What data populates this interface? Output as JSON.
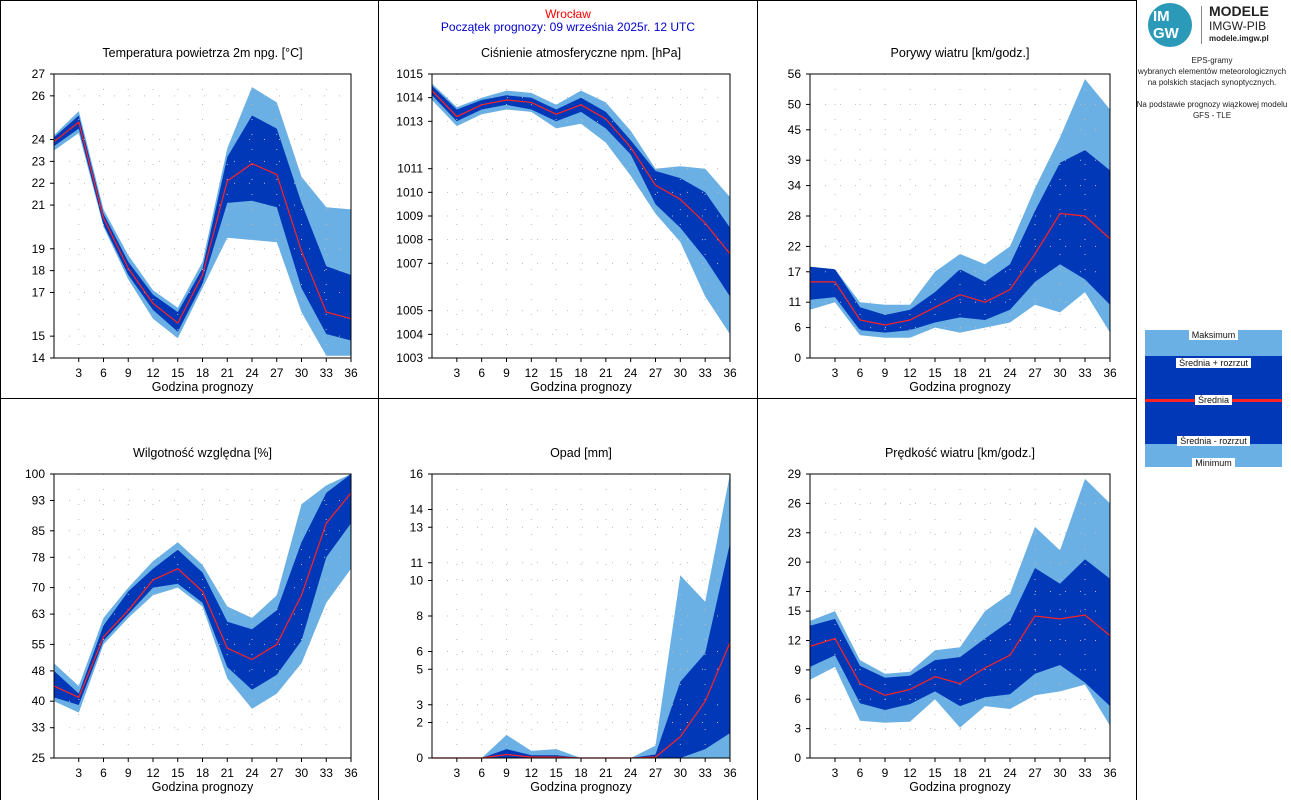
{
  "header": {
    "station": "Wrocław",
    "forecast_start": "Początek prognozy: 09 września 2025r. 12 UTC"
  },
  "logo": {
    "mark_top": "IM",
    "mark_bottom": "GW",
    "title": "MODELE",
    "subtitle": "IMGW-PIB",
    "url": "modele.imgw.pl"
  },
  "description": {
    "line1": "EPS-gramy",
    "line2": "wybranych elementów meteorologicznych",
    "line3": "na polskich stacjach  synoptycznych.",
    "line4": "Na podstawie prognozy wiązkowej modelu",
    "line5": "GFS - TLE"
  },
  "legend": {
    "max": "Maksimum",
    "mean_plus": "Średnia + rozrzut",
    "mean": "Średnia",
    "mean_minus": "Średnia - rozrzut",
    "min": "Minimum"
  },
  "colors": {
    "outer_band": "#6ab0e4",
    "inner_band": "#0038b8",
    "mean_line": "#ff2222",
    "frame": "#000000",
    "grid_dots": "#bbbbbb",
    "station_title": "#ff0000",
    "start_title": "#0000cc"
  },
  "chart_data": [
    {
      "type": "area",
      "title": "Temperatura powietrza 2m npg. [°C]",
      "xlabel": "Godzina prognozy",
      "x": [
        0,
        3,
        6,
        9,
        12,
        15,
        18,
        21,
        24,
        27,
        30,
        33,
        36
      ],
      "xticks": [
        3,
        6,
        9,
        12,
        15,
        18,
        21,
        24,
        27,
        30,
        33,
        36
      ],
      "ylim": [
        14,
        27
      ],
      "yticks": [
        14,
        15,
        17,
        18,
        19,
        21,
        22,
        23,
        24,
        26,
        27
      ],
      "max": [
        24.2,
        25.3,
        20.8,
        18.7,
        17.1,
        16.3,
        18.4,
        23.6,
        26.4,
        25.7,
        22.3,
        20.9,
        20.8
      ],
      "mean_plus": [
        24.1,
        25.1,
        20.6,
        18.4,
        16.9,
        16.1,
        18.1,
        23.2,
        25.1,
        24.5,
        21.1,
        18.2,
        17.8
      ],
      "mean": [
        23.9,
        24.8,
        20.4,
        18.1,
        16.5,
        15.6,
        17.8,
        22.1,
        22.9,
        22.4,
        18.9,
        16.1,
        15.8
      ],
      "mean_minus": [
        23.7,
        24.5,
        20.1,
        17.8,
        16.2,
        15.2,
        17.4,
        21.1,
        21.2,
        20.9,
        17.2,
        15.1,
        14.8
      ],
      "min": [
        23.5,
        24.3,
        20.0,
        17.6,
        15.8,
        14.9,
        17.2,
        19.5,
        19.4,
        19.3,
        16.1,
        14.1,
        14.1
      ]
    },
    {
      "type": "area",
      "title": "Ciśnienie atmosferyczne npm. [hPa]",
      "xlabel": "Godzina prognozy",
      "x": [
        0,
        3,
        6,
        9,
        12,
        15,
        18,
        21,
        24,
        27,
        30,
        33,
        36
      ],
      "xticks": [
        3,
        6,
        9,
        12,
        15,
        18,
        21,
        24,
        27,
        30,
        33,
        36
      ],
      "ylim": [
        1003,
        1015
      ],
      "yticks": [
        1003,
        1004,
        1005,
        1007,
        1008,
        1009,
        1010,
        1011,
        1013,
        1014,
        1015
      ],
      "max": [
        1014.6,
        1013.6,
        1014.0,
        1014.3,
        1014.2,
        1013.7,
        1014.3,
        1013.8,
        1012.6,
        1011.0,
        1011.1,
        1011.0,
        1009.8
      ],
      "mean_plus": [
        1014.5,
        1013.5,
        1013.9,
        1014.1,
        1014.0,
        1013.5,
        1014.0,
        1013.4,
        1012.2,
        1010.9,
        1010.6,
        1010.0,
        1008.5
      ],
      "mean": [
        1014.3,
        1013.2,
        1013.7,
        1013.9,
        1013.8,
        1013.3,
        1013.7,
        1013.1,
        1011.9,
        1010.3,
        1009.7,
        1008.7,
        1007.4
      ],
      "mean_minus": [
        1014.1,
        1013.0,
        1013.5,
        1013.7,
        1013.5,
        1013.0,
        1013.4,
        1012.7,
        1011.6,
        1009.5,
        1008.5,
        1007.2,
        1005.6
      ],
      "min": [
        1013.9,
        1012.8,
        1013.3,
        1013.5,
        1013.4,
        1012.7,
        1012.9,
        1012.1,
        1010.7,
        1009.1,
        1007.9,
        1005.6,
        1004.0
      ]
    },
    {
      "type": "area",
      "title": "Porywy wiatru [km/godz.]",
      "xlabel": "Godzina prognozy",
      "x": [
        0,
        3,
        6,
        9,
        12,
        15,
        18,
        21,
        24,
        27,
        30,
        33,
        36
      ],
      "xticks": [
        3,
        6,
        9,
        12,
        15,
        18,
        21,
        24,
        27,
        30,
        33,
        36
      ],
      "ylim": [
        0,
        56
      ],
      "yticks": [
        0,
        6,
        11,
        17,
        22,
        28,
        34,
        39,
        45,
        50,
        56
      ],
      "max": [
        18.0,
        17.5,
        11.0,
        10.5,
        10.5,
        17.0,
        20.5,
        18.5,
        22.0,
        33.5,
        43.5,
        55.0,
        49.0
      ],
      "mean_plus": [
        18.0,
        17.5,
        10.0,
        8.5,
        9.5,
        13.0,
        17.5,
        15.0,
        18.5,
        29.0,
        38.5,
        41.0,
        37.0
      ],
      "mean": [
        15.0,
        15.0,
        7.5,
        6.5,
        7.5,
        10.0,
        12.5,
        11.0,
        13.5,
        20.5,
        28.5,
        28.0,
        23.5
      ],
      "mean_minus": [
        11.5,
        12.0,
        5.5,
        5.0,
        5.5,
        7.0,
        8.0,
        7.5,
        9.5,
        15.0,
        18.5,
        15.5,
        10.5
      ],
      "min": [
        9.5,
        11.0,
        4.5,
        4.0,
        4.0,
        6.0,
        5.0,
        6.0,
        7.0,
        10.5,
        9.0,
        13.0,
        5.0
      ]
    },
    {
      "type": "area",
      "title": "Wilgotność względna [%]",
      "xlabel": "Godzina prognozy",
      "x": [
        0,
        3,
        6,
        9,
        12,
        15,
        18,
        21,
        24,
        27,
        30,
        33,
        36
      ],
      "xticks": [
        3,
        6,
        9,
        12,
        15,
        18,
        21,
        24,
        27,
        30,
        33,
        36
      ],
      "ylim": [
        25,
        100
      ],
      "yticks": [
        25,
        33,
        40,
        48,
        55,
        63,
        70,
        78,
        85,
        93,
        100
      ],
      "max": [
        50,
        44,
        62,
        70,
        77,
        82,
        76,
        65,
        62,
        68,
        92,
        97,
        100
      ],
      "mean_plus": [
        48,
        42,
        60,
        69,
        75,
        80,
        74,
        61,
        59,
        64,
        82,
        95,
        100
      ],
      "mean": [
        44,
        41,
        57,
        64,
        72,
        75,
        69,
        54,
        51,
        55,
        68,
        87,
        95
      ],
      "mean_minus": [
        41,
        39,
        56,
        63,
        70,
        71,
        66,
        49,
        43,
        47,
        56,
        78,
        87
      ],
      "min": [
        40,
        37,
        55,
        62,
        68,
        70,
        65,
        46,
        38,
        42,
        50,
        66,
        75
      ]
    },
    {
      "type": "area",
      "title": "Opad [mm]",
      "xlabel": "Godzina prognozy",
      "x": [
        0,
        3,
        6,
        9,
        12,
        15,
        18,
        21,
        24,
        27,
        30,
        33,
        36
      ],
      "xticks": [
        3,
        6,
        9,
        12,
        15,
        18,
        21,
        24,
        27,
        30,
        33,
        36
      ],
      "ylim": [
        0,
        16
      ],
      "yticks": [
        0,
        2,
        3,
        5,
        6,
        8,
        10,
        11,
        13,
        14,
        16
      ],
      "max": [
        0,
        0,
        0,
        1.3,
        0.4,
        0.5,
        0,
        0,
        0,
        0.7,
        10.3,
        8.8,
        16.0
      ],
      "mean_plus": [
        0,
        0,
        0,
        0.5,
        0.15,
        0.15,
        0,
        0,
        0,
        0.2,
        4.3,
        5.9,
        12.1
      ],
      "mean": [
        0,
        0,
        0,
        0.2,
        0.05,
        0.05,
        0,
        0,
        0,
        0.05,
        1.2,
        3.2,
        6.5
      ],
      "mean_minus": [
        0,
        0,
        0,
        0,
        0,
        0,
        0,
        0,
        0,
        0,
        0,
        0.5,
        1.4
      ],
      "min": [
        0,
        0,
        0,
        0,
        0,
        0,
        0,
        0,
        0,
        0,
        0,
        0,
        0
      ]
    },
    {
      "type": "area",
      "title": "Prędkość wiatru [km/godz.]",
      "xlabel": "Godzina prognozy",
      "x": [
        0,
        3,
        6,
        9,
        12,
        15,
        18,
        21,
        24,
        27,
        30,
        33,
        36
      ],
      "xticks": [
        3,
        6,
        9,
        12,
        15,
        18,
        21,
        24,
        27,
        30,
        33,
        36
      ],
      "ylim": [
        0,
        29
      ],
      "yticks": [
        0,
        3,
        6,
        9,
        12,
        15,
        17,
        20,
        23,
        26,
        29
      ],
      "max": [
        14.0,
        15.0,
        10.0,
        8.6,
        8.8,
        11.0,
        11.3,
        15.0,
        16.8,
        23.6,
        21.2,
        28.5,
        26.0
      ],
      "mean_plus": [
        13.5,
        14.2,
        9.4,
        8.2,
        8.4,
        10.0,
        10.3,
        12.2,
        14.0,
        19.4,
        17.8,
        20.3,
        18.3
      ],
      "mean": [
        11.4,
        12.2,
        7.6,
        6.4,
        7.0,
        8.3,
        7.6,
        9.2,
        10.5,
        14.5,
        14.2,
        14.6,
        12.5
      ],
      "mean_minus": [
        9.3,
        10.5,
        5.6,
        4.9,
        5.5,
        6.8,
        5.3,
        6.2,
        6.5,
        8.6,
        9.5,
        7.7,
        5.3
      ],
      "min": [
        8.0,
        9.3,
        3.8,
        3.6,
        3.7,
        6.0,
        3.1,
        5.3,
        5.0,
        6.4,
        6.8,
        7.5,
        3.3
      ]
    }
  ]
}
